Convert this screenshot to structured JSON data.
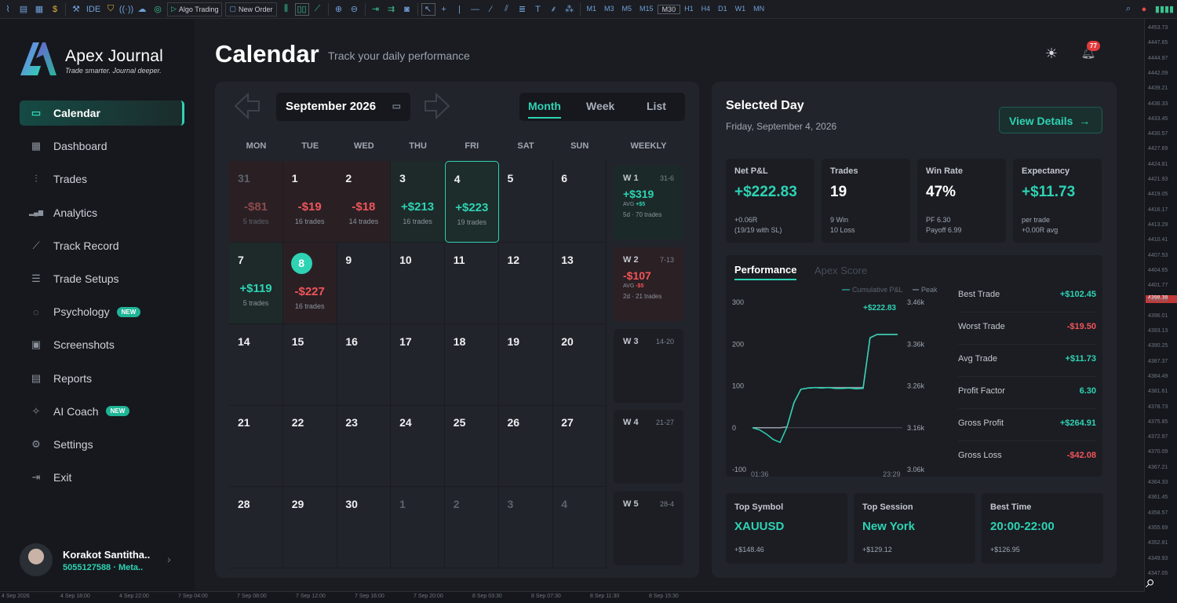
{
  "toolbar": {
    "ide": "IDE",
    "algo_trading": "Algo Trading",
    "new_order": "New Order",
    "timeframes": [
      "M1",
      "M3",
      "M5",
      "M15",
      "M30",
      "H1",
      "H4",
      "D1",
      "W1",
      "MN"
    ],
    "active_timeframe": "M30"
  },
  "price_axis": {
    "labels": [
      "4453.73",
      "4447.65",
      "4444.97",
      "4442.09",
      "4439.21",
      "4436.33",
      "4433.45",
      "4430.57",
      "4427.69",
      "4424.81",
      "4421.93",
      "4419.05",
      "4416.17",
      "4413.29",
      "4410.41",
      "4407.53",
      "4404.65",
      "4401.77",
      "4398.89",
      "4396.01",
      "4393.13",
      "4390.25",
      "4387.37",
      "4384.49",
      "4381.61",
      "4378.73",
      "4375.85",
      "4372.97",
      "4370.09",
      "4367.21",
      "4364.33",
      "4361.45",
      "4358.57",
      "4355.69",
      "4352.81",
      "4349.93",
      "4347.05"
    ],
    "current": "4398.38"
  },
  "time_axis": {
    "labels": [
      "4 Sep 2026",
      "4 Sep 18:00",
      "4 Sep 22:00",
      "7 Sep 04:00",
      "7 Sep 08:00",
      "7 Sep 12:00",
      "7 Sep 16:00",
      "7 Sep 20:00",
      "8 Sep 03:30",
      "8 Sep 07:30",
      "8 Sep 11:30",
      "8 Sep 15:30"
    ]
  },
  "brand": {
    "name": "Apex Journal",
    "tagline": "Trade smarter. Journal deeper."
  },
  "nav": [
    {
      "label": "Calendar",
      "icon": "calendar-icon",
      "active": true
    },
    {
      "label": "Dashboard",
      "icon": "grid-icon"
    },
    {
      "label": "Trades",
      "icon": "candlestick-icon"
    },
    {
      "label": "Analytics",
      "icon": "bar-chart-icon"
    },
    {
      "label": "Track Record",
      "icon": "trend-line-icon"
    },
    {
      "label": "Trade Setups",
      "icon": "sliders-icon"
    },
    {
      "label": "Psychology",
      "icon": "brain-icon",
      "badge": "NEW"
    },
    {
      "label": "Screenshots",
      "icon": "image-icon"
    },
    {
      "label": "Reports",
      "icon": "document-icon"
    },
    {
      "label": "AI Coach",
      "icon": "sparkle-icon",
      "badge": "NEW"
    },
    {
      "label": "Settings",
      "icon": "gear-icon"
    },
    {
      "label": "Exit",
      "icon": "exit-icon"
    }
  ],
  "user": {
    "name": "Korakot Santitha..",
    "account": "5055127588",
    "broker": "Meta.."
  },
  "header": {
    "title": "Calendar",
    "subtitle": "Track your daily performance",
    "notification_count": "77"
  },
  "calendar": {
    "month_label": "September 2026",
    "views": [
      "Month",
      "Week",
      "List"
    ],
    "active_view": "Month",
    "weekdays": [
      "MON",
      "TUE",
      "WED",
      "THU",
      "FRI",
      "SAT",
      "SUN",
      "WEEKLY"
    ],
    "weeks": [
      [
        {
          "d": "31",
          "pnl": "-$81",
          "trades": "5 trades",
          "state": "dim"
        },
        {
          "d": "1",
          "pnl": "-$19",
          "trades": "16 trades",
          "state": "neg"
        },
        {
          "d": "2",
          "pnl": "-$18",
          "trades": "14 trades",
          "state": "neg"
        },
        {
          "d": "3",
          "pnl": "+$213",
          "trades": "16 trades",
          "state": "pos"
        },
        {
          "d": "4",
          "pnl": "+$223",
          "trades": "19 trades",
          "state": "sel"
        },
        {
          "d": "5"
        },
        {
          "d": "6"
        }
      ],
      [
        {
          "d": "7",
          "pnl": "+$119",
          "trades": "5 trades",
          "state": "pos"
        },
        {
          "d": "8",
          "pnl": "-$227",
          "trades": "16 trades",
          "state": "neg",
          "today": true
        },
        {
          "d": "9"
        },
        {
          "d": "10"
        },
        {
          "d": "11"
        },
        {
          "d": "12"
        },
        {
          "d": "13"
        }
      ],
      [
        {
          "d": "14"
        },
        {
          "d": "15"
        },
        {
          "d": "16"
        },
        {
          "d": "17"
        },
        {
          "d": "18"
        },
        {
          "d": "19"
        },
        {
          "d": "20"
        }
      ],
      [
        {
          "d": "21"
        },
        {
          "d": "22"
        },
        {
          "d": "23"
        },
        {
          "d": "24"
        },
        {
          "d": "25"
        },
        {
          "d": "26"
        },
        {
          "d": "27"
        }
      ],
      [
        {
          "d": "28"
        },
        {
          "d": "29"
        },
        {
          "d": "30"
        },
        {
          "d": "1",
          "state": "dimonly"
        },
        {
          "d": "2",
          "state": "dimonly"
        },
        {
          "d": "3",
          "state": "dimonly"
        },
        {
          "d": "4",
          "state": "dimonly"
        }
      ]
    ],
    "weekly": [
      {
        "label": "W 1",
        "range": "31-6",
        "pnl": "+$319",
        "avg_label": "AVG",
        "avg": "+$5",
        "summary": "5d · 70 trades",
        "state": "pos"
      },
      {
        "label": "W 2",
        "range": "7-13",
        "pnl": "-$107",
        "avg_label": "AVG",
        "avg": "-$5",
        "summary": "2d · 21 trades",
        "state": "neg"
      },
      {
        "label": "W 3",
        "range": "14-20"
      },
      {
        "label": "W 4",
        "range": "21-27"
      },
      {
        "label": "W 5",
        "range": "28-4"
      }
    ]
  },
  "selected_day": {
    "title": "Selected Day",
    "date": "Friday, September 4, 2026",
    "view_details": "View Details",
    "stats": [
      {
        "label": "Net P&L",
        "value": "+$222.83",
        "line1": "+0.06R",
        "line2": "(19/19 with SL)",
        "positive": true
      },
      {
        "label": "Trades",
        "value": "19",
        "line1": "9 Win",
        "line2": "10 Loss"
      },
      {
        "label": "Win Rate",
        "value": "47%",
        "line1": "PF 6.30",
        "line2": "Payoff 6.99"
      },
      {
        "label": "Expectancy",
        "value": "+$11.73",
        "line1": "per trade",
        "line2": "+0.00R avg",
        "positive": true
      }
    ],
    "tabs": {
      "performance": "Performance",
      "apex": "Apex Score"
    },
    "metrics": [
      {
        "k": "Best Trade",
        "v": "+$102.45",
        "color": "#2ed3b4"
      },
      {
        "k": "Worst Trade",
        "v": "-$19.50",
        "color": "#f0555a"
      },
      {
        "k": "Avg Trade",
        "v": "+$11.73",
        "color": "#2ed3b4"
      },
      {
        "k": "Profit Factor",
        "v": "6.30",
        "color": "#2ed3b4"
      },
      {
        "k": "Gross Profit",
        "v": "+$264.91",
        "color": "#2ed3b4"
      },
      {
        "k": "Gross Loss",
        "v": "-$42.08",
        "color": "#f0555a"
      }
    ],
    "bottom": [
      {
        "label": "Top Symbol",
        "value": "XAUUSD",
        "sub": "+$148.46"
      },
      {
        "label": "Top Session",
        "value": "New York",
        "sub": "+$129.12"
      },
      {
        "label": "Best Time",
        "value": "20:00-22:00",
        "sub": "+$126.95"
      }
    ]
  },
  "chart_data": {
    "type": "line",
    "title": "",
    "legend": [
      "Cumulative P&L",
      "Peak"
    ],
    "last_value_label": "+$222.83",
    "x_ticks": [
      "01:36",
      "23:29"
    ],
    "y_left_ticks": [
      "300",
      "200",
      "100",
      "0",
      "-100"
    ],
    "y_right_ticks": [
      "3.46k",
      "3.36k",
      "3.26k",
      "3.16k",
      "3.06k"
    ],
    "ylim": [
      -100,
      300
    ],
    "series": [
      {
        "name": "Cumulative P&L",
        "color": "#2ed3b4",
        "values": [
          0,
          -5,
          -15,
          -28,
          -35,
          2,
          60,
          92,
          95,
          96,
          95,
          96,
          94,
          94,
          95,
          93,
          94,
          215,
          223,
          223,
          223,
          223
        ]
      },
      {
        "name": "Peak",
        "color": "#9aa1ab",
        "values": [
          0,
          0,
          0,
          0,
          0,
          2,
          60,
          92,
          95,
          96,
          96,
          96,
          96,
          96,
          96,
          96,
          96,
          215,
          223,
          223,
          223,
          223
        ]
      }
    ],
    "colors": {
      "pos": "#2ed3b4",
      "neg": "#f0555a"
    }
  }
}
